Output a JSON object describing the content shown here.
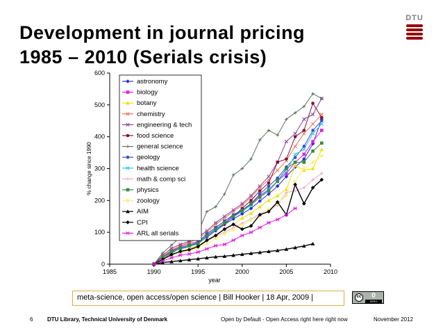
{
  "slide": {
    "title_line1": "Development in journal pricing",
    "title_line2": "1985 – 2010 (Serials crisis)",
    "logo_text": "DTU",
    "caption": "meta-science, open access/open science | Bill Hooker | 18 Apr, 2009 |",
    "license": {
      "main": "0",
      "sub": "ZERO",
      "circle": "cc"
    },
    "footer": {
      "page_number": "6",
      "organization": "DTU Library, Technical University of Denmark",
      "middle": "Open by Default - Open Access right here right now",
      "date": "November 2012"
    },
    "colors": {
      "logo_red": "#990000",
      "caption_border": "#e0a94a"
    }
  },
  "chart_data": {
    "type": "line",
    "title": "",
    "xlabel": "year",
    "ylabel": "% change since 1990",
    "xlim": [
      1985,
      2010
    ],
    "ylim": [
      0,
      600
    ],
    "xticks": [
      1985,
      1990,
      1995,
      2000,
      2005,
      2010
    ],
    "yticks": [
      0,
      100,
      200,
      300,
      400,
      500,
      600
    ],
    "grid": false,
    "legend": "top-left",
    "series": [
      {
        "name": "astronomy",
        "color": "#2b2bd6",
        "marker": "diamond",
        "x": [
          1990,
          1991,
          1992,
          1993,
          1994,
          1995,
          1996,
          1997,
          1998,
          1999,
          2000,
          2001,
          2002,
          2003,
          2004,
          2005,
          2006,
          2007,
          2008,
          2009
        ],
        "y": [
          0,
          22,
          40,
          48,
          55,
          65,
          85,
          105,
          125,
          142,
          158,
          175,
          198,
          220,
          245,
          275,
          305,
          330,
          378,
          455
        ]
      },
      {
        "name": "biology",
        "color": "#e020e0",
        "marker": "square",
        "x": [
          1990,
          1991,
          1992,
          1993,
          1994,
          1995,
          1996,
          1997,
          1998,
          1999,
          2000,
          2001,
          2002,
          2003,
          2004,
          2005,
          2006,
          2007,
          2008,
          2009
        ],
        "y": [
          0,
          22,
          42,
          55,
          65,
          70,
          95,
          115,
          135,
          152,
          168,
          190,
          215,
          235,
          260,
          285,
          320,
          345,
          385,
          420
        ]
      },
      {
        "name": "botany",
        "color": "#f0e000",
        "marker": "triangle",
        "x": [
          1990,
          1991,
          1992,
          1993,
          1994,
          1995,
          1996,
          1997,
          1998,
          1999,
          2000,
          2001,
          2002,
          2003,
          2004,
          2005,
          2006,
          2007,
          2008,
          2009
        ],
        "y": [
          0,
          18,
          30,
          40,
          50,
          58,
          75,
          90,
          110,
          125,
          145,
          160,
          180,
          200,
          215,
          235,
          310,
          295,
          300,
          360
        ]
      },
      {
        "name": "chemistry",
        "color": "#f07050",
        "marker": "x",
        "x": [
          1990,
          1991,
          1992,
          1993,
          1994,
          1995,
          1996,
          1997,
          1998,
          1999,
          2000,
          2001,
          2002,
          2003,
          2004,
          2005,
          2006,
          2007,
          2008,
          2009
        ],
        "y": [
          0,
          25,
          45,
          58,
          68,
          80,
          100,
          125,
          145,
          165,
          185,
          210,
          240,
          265,
          295,
          325,
          370,
          410,
          440,
          470
        ]
      },
      {
        "name": "engineering & tech",
        "color": "#8040a0",
        "marker": "x",
        "x": [
          1990,
          1991,
          1992,
          1993,
          1994,
          1995,
          1996,
          1997,
          1998,
          1999,
          2000,
          2001,
          2002,
          2003,
          2004,
          2005,
          2006,
          2007,
          2008,
          2009
        ],
        "y": [
          0,
          28,
          50,
          62,
          72,
          85,
          105,
          130,
          150,
          170,
          190,
          215,
          245,
          275,
          320,
          385,
          410,
          455,
          470,
          520
        ]
      },
      {
        "name": "food science",
        "color": "#801030",
        "marker": "circle",
        "x": [
          1990,
          1991,
          1992,
          1993,
          1994,
          1995,
          1996,
          1997,
          1998,
          1999,
          2000,
          2001,
          2002,
          2003,
          2004,
          2005,
          2006,
          2007,
          2008,
          2009
        ],
        "y": [
          0,
          20,
          35,
          50,
          60,
          62,
          90,
          110,
          125,
          150,
          175,
          200,
          230,
          255,
          320,
          330,
          400,
          420,
          505,
          460
        ]
      },
      {
        "name": "general science",
        "color": "#607060",
        "marker": "plus",
        "x": [
          1990,
          1991,
          1992,
          1993,
          1994,
          1995,
          1996,
          1997,
          1998,
          1999,
          2000,
          2001,
          2002,
          2003,
          2004,
          2005,
          2006,
          2007,
          2008,
          2009
        ],
        "y": [
          0,
          35,
          60,
          85,
          105,
          100,
          165,
          180,
          220,
          280,
          300,
          330,
          390,
          420,
          405,
          455,
          475,
          495,
          535,
          520
        ]
      },
      {
        "name": "geology",
        "color": "#3050d0",
        "marker": "circle",
        "x": [
          1990,
          1991,
          1992,
          1993,
          1994,
          1995,
          1996,
          1997,
          1998,
          1999,
          2000,
          2001,
          2002,
          2003,
          2004,
          2005,
          2006,
          2007,
          2008,
          2009
        ],
        "y": [
          0,
          22,
          40,
          52,
          60,
          68,
          95,
          115,
          135,
          155,
          170,
          190,
          220,
          245,
          270,
          305,
          335,
          370,
          420,
          450
        ]
      },
      {
        "name": "health science",
        "color": "#30c0f0",
        "marker": "x",
        "x": [
          1990,
          1991,
          1992,
          1993,
          1994,
          1995,
          1996,
          1997,
          1998,
          1999,
          2000,
          2001,
          2002,
          2003,
          2004,
          2005,
          2006,
          2007,
          2008,
          2009
        ],
        "y": [
          0,
          20,
          38,
          48,
          58,
          62,
          88,
          108,
          128,
          148,
          165,
          185,
          210,
          235,
          260,
          290,
          345,
          360,
          410,
          440
        ]
      },
      {
        "name": "math & comp sci",
        "color": "#f0a8d0",
        "marker": "plus",
        "x": [
          1990,
          1991,
          1992,
          1993,
          1994,
          1995,
          1996,
          1997,
          1998,
          1999,
          2000,
          2001,
          2002,
          2003,
          2004,
          2005,
          2006,
          2007,
          2008,
          2009
        ],
        "y": [
          0,
          18,
          30,
          40,
          48,
          55,
          72,
          88,
          100,
          115,
          128,
          142,
          158,
          172,
          185,
          225,
          230,
          240,
          265,
          285
        ]
      },
      {
        "name": "physics",
        "color": "#3a8a3a",
        "marker": "square",
        "x": [
          1990,
          1991,
          1992,
          1993,
          1994,
          1995,
          1996,
          1997,
          1998,
          1999,
          2000,
          2001,
          2002,
          2003,
          2004,
          2005,
          2006,
          2007,
          2008,
          2009
        ],
        "y": [
          0,
          22,
          40,
          52,
          60,
          65,
          90,
          110,
          130,
          150,
          168,
          188,
          210,
          230,
          260,
          300,
          320,
          320,
          355,
          380
        ]
      },
      {
        "name": "zoology",
        "color": "#f8f080",
        "marker": "circle",
        "x": [
          1990,
          1991,
          1992,
          1993,
          1994,
          1995,
          1996,
          1997,
          1998,
          1999,
          2000,
          2001,
          2002,
          2003,
          2004,
          2005,
          2006,
          2007,
          2008,
          2009
        ],
        "y": [
          0,
          15,
          28,
          36,
          44,
          50,
          65,
          80,
          95,
          108,
          122,
          138,
          155,
          172,
          190,
          215,
          260,
          300,
          320,
          340
        ]
      },
      {
        "name": "AIM",
        "color": "#000000",
        "marker": "triangle",
        "x": [
          1990,
          1991,
          1992,
          1993,
          1994,
          1995,
          1996,
          1997,
          1998,
          1999,
          2000,
          2001,
          2002,
          2003,
          2004,
          2005,
          2006,
          2007,
          2008
        ],
        "y": [
          0,
          5,
          8,
          11,
          14,
          17,
          20,
          23,
          25,
          28,
          31,
          34,
          37,
          40,
          43,
          47,
          52,
          57,
          64
        ]
      },
      {
        "name": "CPI",
        "color": "#000000",
        "marker": "diamond",
        "x": [
          1990,
          1991,
          1992,
          1993,
          1994,
          1995,
          1996,
          1997,
          1998,
          1999,
          2000,
          2001,
          2002,
          2003,
          2004,
          2005,
          2006,
          2007,
          2008,
          2009
        ],
        "y": [
          0,
          15,
          30,
          40,
          45,
          55,
          75,
          90,
          110,
          125,
          110,
          120,
          155,
          165,
          195,
          155,
          250,
          190,
          240,
          265
        ]
      },
      {
        "name": "ARL all serials",
        "color": "#e020e0",
        "marker": "star",
        "x": [
          1990,
          1991,
          1992,
          1993,
          1994,
          1995,
          1996,
          1997,
          1998,
          1999,
          2000,
          2001,
          2002,
          2003,
          2004,
          2005,
          2006
        ],
        "y": [
          0,
          10,
          20,
          28,
          32,
          38,
          48,
          58,
          62,
          75,
          90,
          100,
          115,
          130,
          140,
          155,
          175
        ]
      }
    ]
  }
}
